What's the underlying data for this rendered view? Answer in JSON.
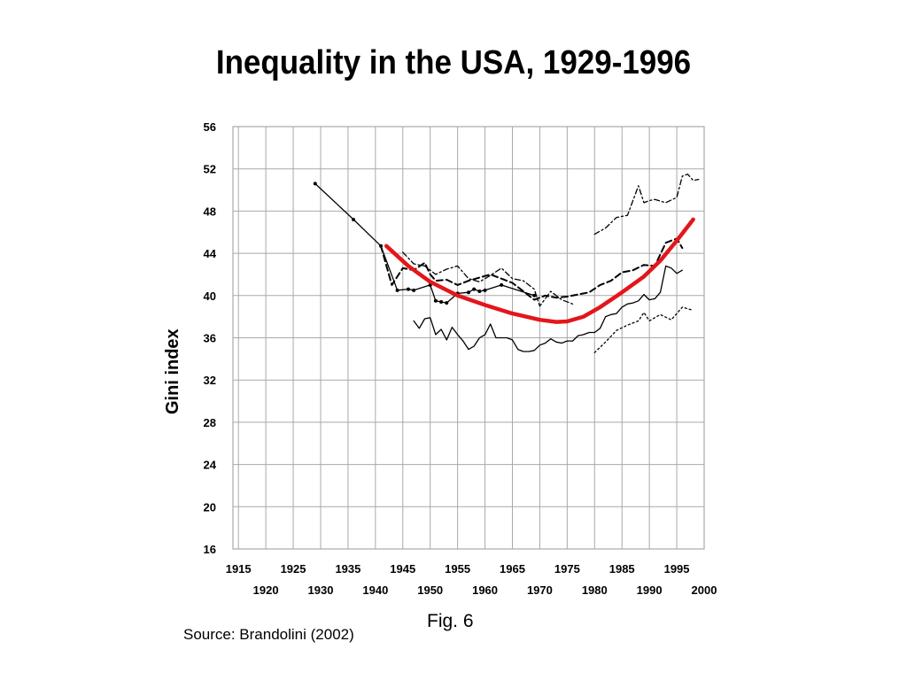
{
  "title": "Inequality in the USA, 1929-1996",
  "figure_caption": "Fig. 6",
  "source": "Source: Brandolini (2002)",
  "chart_data": {
    "type": "line",
    "title": "Inequality in the USA, 1929-1996",
    "ylabel": "Gini index",
    "xlabel": "",
    "xlim": [
      1914,
      2000
    ],
    "ylim": [
      16,
      56
    ],
    "yticks": [
      16,
      20,
      24,
      28,
      32,
      36,
      40,
      44,
      48,
      52,
      56
    ],
    "xticks_upper": [
      1915,
      1925,
      1935,
      1945,
      1955,
      1965,
      1975,
      1985,
      1995
    ],
    "xticks_lower": [
      1920,
      1930,
      1940,
      1950,
      1960,
      1970,
      1980,
      1990,
      2000
    ],
    "grid": true,
    "series": [
      {
        "style": "solid-markers",
        "color": "#000000",
        "points": [
          [
            1929,
            50.6
          ],
          [
            1936,
            47.2
          ],
          [
            1941,
            44.7
          ],
          [
            1944,
            40.5
          ],
          [
            1946,
            40.6
          ],
          [
            1947,
            40.5
          ],
          [
            1950,
            41.0
          ],
          [
            1951,
            39.5
          ],
          [
            1952,
            39.4
          ],
          [
            1953,
            39.3
          ],
          [
            1955,
            40.2
          ],
          [
            1957,
            40.3
          ],
          [
            1958,
            40.6
          ],
          [
            1959,
            40.4
          ],
          [
            1960,
            40.5
          ],
          [
            1963,
            41.0
          ],
          [
            1969,
            40.0
          ]
        ]
      },
      {
        "style": "solid",
        "color": "#000000",
        "points": [
          [
            1947,
            37.6
          ],
          [
            1948,
            36.9
          ],
          [
            1949,
            37.8
          ],
          [
            1950,
            37.9
          ],
          [
            1951,
            36.3
          ],
          [
            1952,
            36.8
          ],
          [
            1953,
            35.8
          ],
          [
            1954,
            37.0
          ],
          [
            1955,
            36.3
          ],
          [
            1956,
            35.7
          ],
          [
            1957,
            34.9
          ],
          [
            1958,
            35.2
          ],
          [
            1959,
            36.0
          ],
          [
            1960,
            36.3
          ],
          [
            1961,
            37.3
          ],
          [
            1962,
            36.0
          ],
          [
            1963,
            36.0
          ],
          [
            1964,
            36.0
          ],
          [
            1965,
            35.8
          ],
          [
            1966,
            34.9
          ],
          [
            1967,
            34.7
          ],
          [
            1968,
            34.7
          ],
          [
            1969,
            34.8
          ],
          [
            1970,
            35.3
          ],
          [
            1971,
            35.5
          ],
          [
            1972,
            35.9
          ],
          [
            1973,
            35.6
          ],
          [
            1974,
            35.5
          ],
          [
            1975,
            35.7
          ],
          [
            1976,
            35.7
          ],
          [
            1977,
            36.2
          ],
          [
            1978,
            36.3
          ],
          [
            1979,
            36.5
          ],
          [
            1980,
            36.5
          ],
          [
            1981,
            36.9
          ],
          [
            1982,
            38.0
          ],
          [
            1983,
            38.2
          ],
          [
            1984,
            38.3
          ],
          [
            1985,
            38.9
          ],
          [
            1986,
            39.2
          ],
          [
            1987,
            39.3
          ],
          [
            1988,
            39.5
          ],
          [
            1989,
            40.1
          ],
          [
            1990,
            39.6
          ],
          [
            1991,
            39.7
          ],
          [
            1992,
            40.3
          ],
          [
            1993,
            42.8
          ],
          [
            1994,
            42.6
          ],
          [
            1995,
            42.1
          ],
          [
            1996,
            42.4
          ]
        ]
      },
      {
        "style": "dashed",
        "color": "#000000",
        "points": [
          [
            1941,
            44.7
          ],
          [
            1943,
            41.0
          ],
          [
            1945,
            42.6
          ],
          [
            1947,
            42.4
          ],
          [
            1949,
            43.1
          ],
          [
            1950,
            42.0
          ],
          [
            1951,
            41.4
          ],
          [
            1953,
            41.5
          ],
          [
            1955,
            41.0
          ],
          [
            1957,
            41.4
          ],
          [
            1959,
            41.7
          ],
          [
            1961,
            42.0
          ],
          [
            1963,
            41.6
          ],
          [
            1965,
            41.2
          ],
          [
            1967,
            40.4
          ],
          [
            1969,
            39.6
          ],
          [
            1971,
            40.0
          ],
          [
            1973,
            39.8
          ],
          [
            1975,
            39.9
          ],
          [
            1977,
            40.1
          ],
          [
            1979,
            40.3
          ],
          [
            1981,
            41.0
          ],
          [
            1983,
            41.4
          ],
          [
            1985,
            42.2
          ],
          [
            1987,
            42.4
          ],
          [
            1989,
            42.9
          ],
          [
            1991,
            42.8
          ],
          [
            1993,
            45.0
          ],
          [
            1995,
            45.4
          ],
          [
            1996,
            44.5
          ]
        ]
      },
      {
        "style": "dash-dot",
        "color": "#000000",
        "points": [
          [
            1945,
            44.1
          ],
          [
            1947,
            43.0
          ],
          [
            1949,
            42.8
          ],
          [
            1951,
            42.0
          ],
          [
            1953,
            42.5
          ],
          [
            1955,
            42.8
          ],
          [
            1957,
            41.6
          ],
          [
            1959,
            41.3
          ],
          [
            1961,
            41.9
          ],
          [
            1963,
            42.6
          ],
          [
            1965,
            41.6
          ],
          [
            1967,
            41.4
          ],
          [
            1969,
            40.6
          ],
          [
            1970,
            39.0
          ],
          [
            1972,
            40.4
          ],
          [
            1974,
            39.6
          ],
          [
            1976,
            39.2
          ]
        ]
      },
      {
        "style": "dash-dot",
        "color": "#000000",
        "points": [
          [
            1980,
            45.8
          ],
          [
            1982,
            46.4
          ],
          [
            1984,
            47.4
          ],
          [
            1986,
            47.6
          ],
          [
            1988,
            50.4
          ],
          [
            1989,
            48.8
          ],
          [
            1990,
            49.0
          ],
          [
            1991,
            49.1
          ],
          [
            1993,
            48.8
          ],
          [
            1995,
            49.3
          ],
          [
            1996,
            51.3
          ],
          [
            1997,
            51.5
          ],
          [
            1998,
            50.9
          ],
          [
            1999,
            51.0
          ]
        ]
      },
      {
        "style": "dotted",
        "color": "#000000",
        "points": [
          [
            1980,
            34.6
          ],
          [
            1982,
            35.6
          ],
          [
            1984,
            36.7
          ],
          [
            1986,
            37.2
          ],
          [
            1988,
            37.6
          ],
          [
            1989,
            38.4
          ],
          [
            1990,
            37.6
          ],
          [
            1992,
            38.2
          ],
          [
            1994,
            37.7
          ],
          [
            1996,
            38.9
          ],
          [
            1998,
            38.6
          ]
        ]
      },
      {
        "style": "trend",
        "color": "#e3161b",
        "points": [
          [
            1942,
            44.7
          ],
          [
            1946,
            42.8
          ],
          [
            1950,
            41.3
          ],
          [
            1955,
            40.0
          ],
          [
            1960,
            39.1
          ],
          [
            1965,
            38.3
          ],
          [
            1970,
            37.7
          ],
          [
            1973,
            37.5
          ],
          [
            1975,
            37.55
          ],
          [
            1978,
            38.0
          ],
          [
            1981,
            38.9
          ],
          [
            1985,
            40.3
          ],
          [
            1989,
            41.8
          ],
          [
            1992,
            43.3
          ],
          [
            1995,
            45.2
          ],
          [
            1998,
            47.2
          ]
        ]
      }
    ]
  }
}
